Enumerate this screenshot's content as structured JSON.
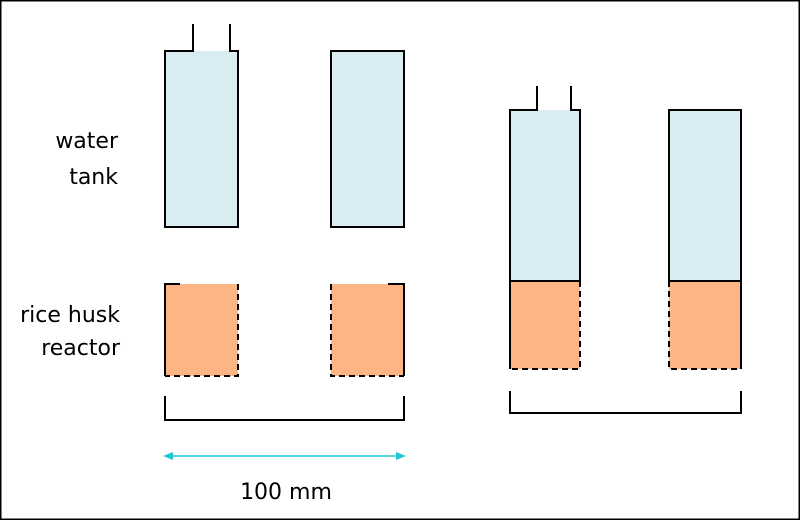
{
  "labels": {
    "water_tank_line1": "water",
    "water_tank_line2": "tank",
    "reactor_line1": "rice husk",
    "reactor_line2": "reactor",
    "scale": "100 mm"
  },
  "colors": {
    "water": "#d9ecf2",
    "rice_husk": "#fdb583",
    "outline": "#000000",
    "arrow": "#20c5d8",
    "frame": "#000000"
  },
  "icons": {
    "dimension_arrow": "double-headed-arrow"
  }
}
